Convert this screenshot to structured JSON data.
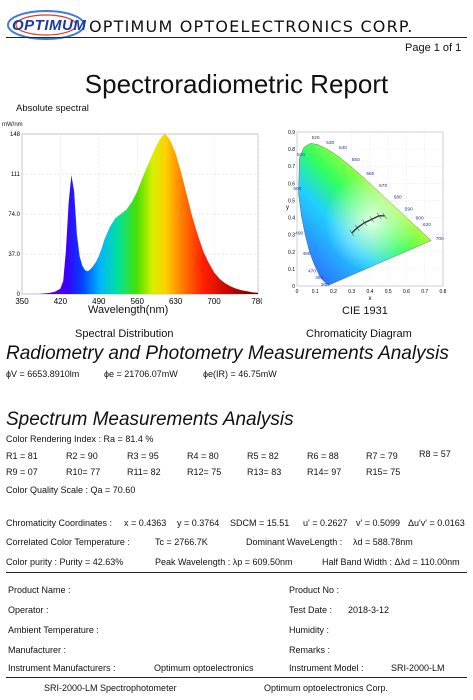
{
  "header": {
    "logo": "OPTIMUM",
    "company": "OPTIMUM  OPTOELECTRONICS  CORP.",
    "page": "Page 1 of 1"
  },
  "title": "Spectroradiometric Report",
  "spectrum_chart": {
    "title": "Absolute spectral",
    "unit": "mW/nm",
    "caption": "Spectral Distribution",
    "chart_data": {
      "type": "area",
      "xlabel": "Wavelength(nm)",
      "ylabel": "mW/nm",
      "x_ticks": [
        "350",
        "420",
        "490",
        "560",
        "630",
        "700",
        "780"
      ],
      "y_ticks": [
        "0",
        "37.0",
        "74.0",
        "111",
        "148"
      ],
      "xlim": [
        350,
        780
      ],
      "ylim": [
        0,
        148
      ],
      "x": [
        380,
        390,
        400,
        410,
        420,
        425,
        430,
        435,
        440,
        445,
        450,
        455,
        460,
        465,
        470,
        475,
        480,
        485,
        490,
        495,
        500,
        510,
        520,
        530,
        540,
        550,
        560,
        570,
        580,
        590,
        600,
        605,
        610,
        615,
        620,
        630,
        640,
        650,
        660,
        670,
        680,
        690,
        700,
        710,
        720,
        730,
        740,
        750,
        760,
        770,
        780
      ],
      "values": [
        0,
        0.5,
        1,
        2,
        5,
        12,
        40,
        85,
        110,
        95,
        55,
        35,
        26,
        22,
        21,
        23,
        26,
        30,
        35,
        42,
        50,
        62,
        70,
        74,
        78,
        85,
        95,
        108,
        120,
        132,
        142,
        146,
        148,
        146,
        142,
        130,
        112,
        92,
        72,
        55,
        40,
        29,
        20,
        14,
        10,
        7,
        5,
        3.5,
        2.5,
        1.5,
        1
      ]
    }
  },
  "cie_chart": {
    "caption_top": "CIE 1931",
    "caption": "Chromaticity Diagram",
    "wavelength_labels": [
      "520",
      "530",
      "540",
      "510",
      "550",
      "560",
      "570",
      "580",
      "590",
      "500",
      "600",
      "620",
      "700",
      "490",
      "480",
      "470",
      "460",
      "380"
    ],
    "x_ticks": [
      "0",
      "0.1",
      "0.2",
      "0.3",
      "0.4",
      "0.5",
      "0.6",
      "0.7",
      "0.8"
    ],
    "y_ticks": [
      "0",
      "0.1",
      "0.2",
      "0.3",
      "0.4",
      "0.5",
      "0.6",
      "0.7",
      "0.8",
      "0.9"
    ],
    "xlabel": "x",
    "ylabel": "y"
  },
  "radiometry": {
    "title": "Radiometry and Photometry Measurements Analysis",
    "phi_v": "ɸV = 6653.8910lm",
    "phi_e": "ɸe = 21706.07mW",
    "phi_ir": "ɸe(IR) = 46.75mW"
  },
  "spectrum": {
    "title": "Spectrum Measurements Analysis",
    "cri": "Color Rendering Index :      Ra = 81.4 %",
    "r_row1": [
      "R1 = 81",
      "R2 = 90",
      "R3 = 95",
      "R4 = 80",
      "R5 = 82",
      "R6 = 88",
      "R7 = 79",
      "R8 = 57"
    ],
    "r_row2": [
      "R9 = 07",
      "R10= 77",
      "R11= 82",
      "R12= 75",
      "R13= 83",
      "R14= 97",
      "R15= 75"
    ],
    "cqs": "Color Quality Scale :      Qa = 70.60",
    "chroma_label": "Chromaticity Coordinates :",
    "x": "x = 0.4363",
    "y": "y = 0.3764",
    "sdcm": "SDCM = 15.51",
    "u": "u' = 0.2627",
    "v": "v' = 0.5099",
    "duv": "Δu'v' = 0.0163",
    "cct_label": "Correlated Color Temperature :",
    "cct": "Tc = 2766.7K",
    "dominant": "Dominant WaveLength :",
    "dominant_val": "λd = 588.78nm",
    "purity": "Color purity :    Purity = 42.63%",
    "peak": "Peak Wavelength :   λp = 609.50nm",
    "halfband": "Half Band Width :  Δλd = 110.00nm"
  },
  "info": {
    "product_name": "Product Name :",
    "product_no": "Product No :",
    "operator": "Operator :",
    "test_date_label": "Test Date :",
    "test_date": "2018-3-12",
    "ambient": "Ambient Temperature :",
    "humidity": "Humidity :",
    "manufacturer": "Manufacturer :",
    "remarks": "Remarks :",
    "inst_mfr_label": "Instrument Manufacturers :",
    "inst_mfr": "Optimum optoelectronics",
    "inst_model_label": "Instrument Model :",
    "inst_model": "SRI-2000-LM",
    "foot_left": "SRI-2000-LM Spectrophotometer",
    "foot_right": "Optimum optoelectronics Corp."
  }
}
